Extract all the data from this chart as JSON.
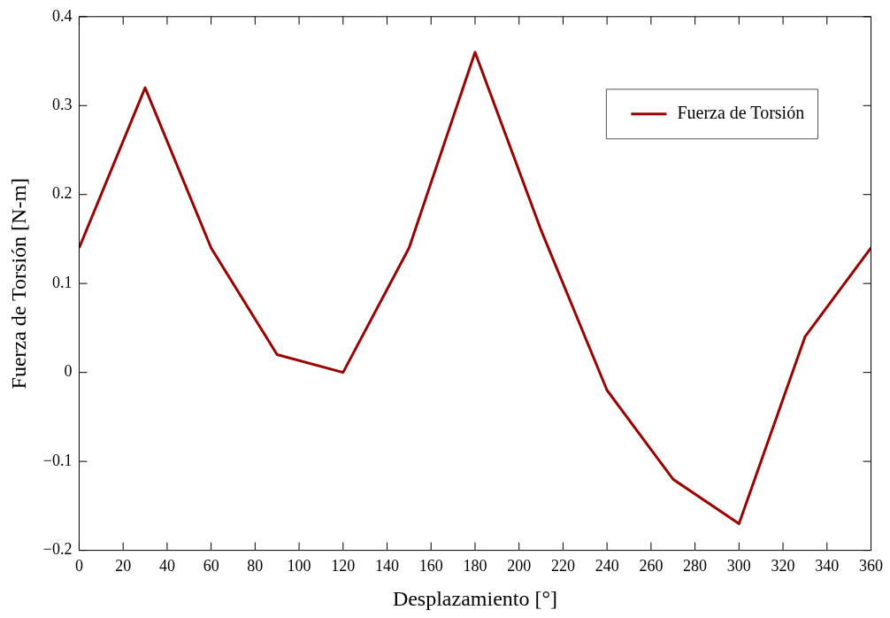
{
  "chart_data": {
    "type": "line",
    "xlabel": "Desplazamiento [°]",
    "ylabel": "Fuerza de Torsión [N-m]",
    "x": [
      0,
      30,
      60,
      90,
      120,
      150,
      180,
      210,
      240,
      270,
      300,
      330,
      360
    ],
    "series": [
      {
        "name": "Fuerza de Torsión",
        "color": "#990000",
        "values": [
          0.14,
          0.32,
          0.14,
          0.02,
          0.0,
          0.14,
          0.36,
          0.16,
          -0.02,
          -0.12,
          -0.17,
          0.04,
          0.14
        ]
      }
    ],
    "xlim": [
      0,
      360
    ],
    "xticks": [
      0,
      20,
      40,
      60,
      80,
      100,
      120,
      140,
      160,
      180,
      200,
      220,
      240,
      260,
      280,
      300,
      320,
      340,
      360
    ],
    "ylim": [
      -0.2,
      0.4
    ],
    "yticks": [
      {
        "value": -0.2,
        "label": "−0.2"
      },
      {
        "value": -0.1,
        "label": "−0.1"
      },
      0,
      0.1,
      0.2,
      0.3,
      0.4
    ],
    "grid": false,
    "legend": "top right",
    "marker": "none",
    "line_style": "solid"
  }
}
